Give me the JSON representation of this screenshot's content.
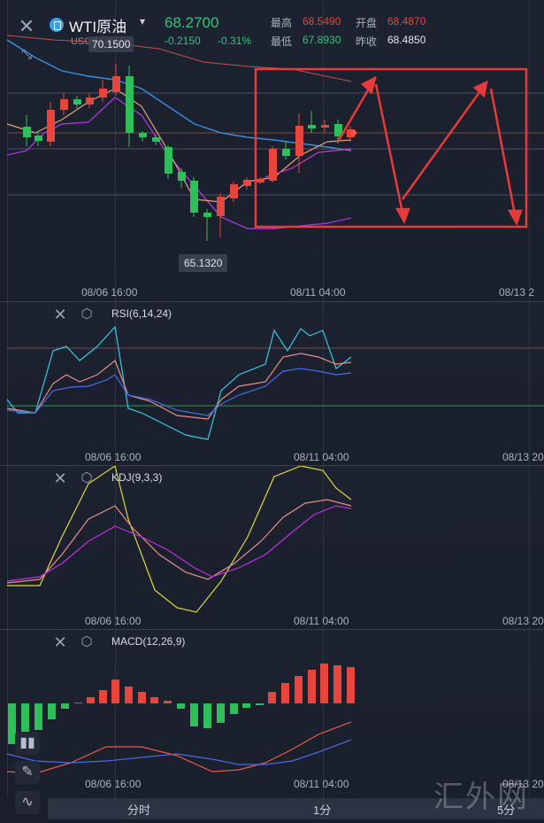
{
  "header": {
    "symbol": "WTI原油",
    "sub_symbol": "USOIL",
    "price": "68.2700",
    "change": "-0.2150",
    "change_pct": "-0.31%",
    "high_label": "最高",
    "high": "68.5490",
    "low_label": "最低",
    "low": "67.8930",
    "open_label": "开盘",
    "open": "68.4870",
    "prev_close_label": "昨收",
    "prev_close": "68.4850",
    "colors": {
      "up": "#e8453c",
      "down": "#2fbf5a",
      "price": "#34c37a"
    }
  },
  "main_chart": {
    "max_marker": "70.1500",
    "min_marker": "65.1320",
    "time_ticks": [
      "08/06 16:00",
      "08/11 04:00",
      "08/13 2"
    ]
  },
  "rsi": {
    "label": "RSI(6,14,24)",
    "time_ticks": [
      "08/06 16:00",
      "08/11 04:00",
      "08/13 20"
    ]
  },
  "kdj": {
    "label": "KDJ(9,3,3)",
    "time_ticks": [
      "08/06 16:00",
      "08/11 04:00",
      "08/13 20"
    ]
  },
  "macd": {
    "label": "MACD(12,26,9)",
    "time_ticks": [
      "08/06 16:00",
      "08/11 04:00",
      "08/13 20"
    ]
  },
  "bottom_tabs": [
    "分时",
    "1分",
    "5分"
  ],
  "watermark": "汇外网"
}
